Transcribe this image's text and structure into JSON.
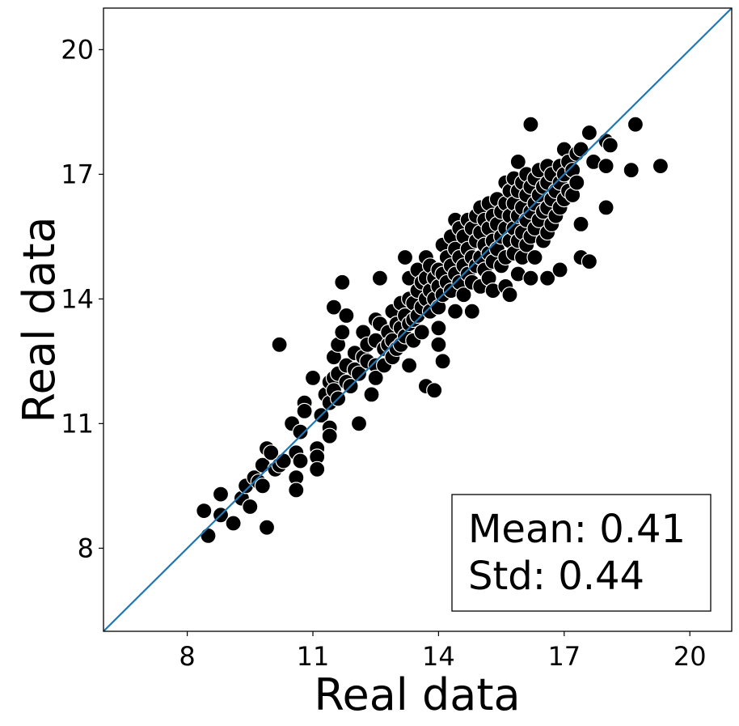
{
  "chart_data": {
    "type": "scatter",
    "title": "",
    "xlabel": "Real data",
    "ylabel": "Real data",
    "xlim": [
      6,
      21
    ],
    "ylim": [
      6,
      21
    ],
    "xticks": [
      8,
      11,
      14,
      17,
      20
    ],
    "yticks": [
      8,
      11,
      14,
      17,
      20
    ],
    "tick_labels": [
      "8",
      "11",
      "14",
      "17",
      "20"
    ],
    "grid": false,
    "marker_color": "#000000",
    "marker_edge_color": "#ffffff",
    "reference_line": {
      "name": "identity y=x",
      "color": "#1f77b4",
      "from": [
        6,
        6
      ],
      "to": [
        21,
        21
      ]
    },
    "annotation": {
      "mean_label": "Mean: 0.41",
      "std_label": "Std: 0.44",
      "position": "bottom-right"
    },
    "points": [
      [
        8.4,
        8.9
      ],
      [
        8.5,
        8.3
      ],
      [
        8.8,
        9.3
      ],
      [
        8.8,
        8.8
      ],
      [
        9.1,
        8.6
      ],
      [
        9.3,
        9.2
      ],
      [
        9.4,
        9.5
      ],
      [
        9.5,
        9.0
      ],
      [
        9.6,
        9.7
      ],
      [
        9.7,
        9.6
      ],
      [
        9.8,
        10.0
      ],
      [
        9.8,
        9.5
      ],
      [
        9.9,
        10.4
      ],
      [
        9.9,
        8.5
      ],
      [
        10.0,
        10.3
      ],
      [
        10.1,
        9.9
      ],
      [
        10.2,
        10.0
      ],
      [
        10.2,
        12.9
      ],
      [
        10.3,
        10.1
      ],
      [
        10.5,
        11.0
      ],
      [
        10.6,
        10.3
      ],
      [
        10.6,
        9.7
      ],
      [
        10.6,
        9.4
      ],
      [
        10.7,
        10.8
      ],
      [
        10.7,
        10.1
      ],
      [
        10.8,
        11.5
      ],
      [
        10.8,
        11.3
      ],
      [
        11.0,
        12.1
      ],
      [
        11.1,
        10.4
      ],
      [
        11.1,
        10.2
      ],
      [
        11.1,
        9.9
      ],
      [
        11.2,
        11.2
      ],
      [
        11.3,
        11.7
      ],
      [
        11.4,
        12.0
      ],
      [
        11.4,
        11.5
      ],
      [
        11.4,
        10.9
      ],
      [
        11.4,
        10.7
      ],
      [
        11.5,
        13.8
      ],
      [
        11.5,
        12.6
      ],
      [
        11.5,
        12.1
      ],
      [
        11.5,
        11.8
      ],
      [
        11.6,
        12.9
      ],
      [
        11.6,
        12.2
      ],
      [
        11.6,
        11.6
      ],
      [
        11.7,
        14.4
      ],
      [
        11.7,
        13.2
      ],
      [
        11.8,
        13.6
      ],
      [
        11.8,
        12.4
      ],
      [
        11.8,
        12.0
      ],
      [
        11.9,
        11.9
      ],
      [
        12.0,
        12.7
      ],
      [
        12.0,
        12.3
      ],
      [
        12.1,
        12.2
      ],
      [
        12.1,
        11.0
      ],
      [
        12.2,
        13.2
      ],
      [
        12.2,
        12.6
      ],
      [
        12.3,
        12.9
      ],
      [
        12.3,
        12.5
      ],
      [
        12.4,
        11.7
      ],
      [
        12.5,
        13.5
      ],
      [
        12.5,
        13.0
      ],
      [
        12.5,
        12.4
      ],
      [
        12.5,
        12.1
      ],
      [
        12.6,
        14.5
      ],
      [
        12.6,
        13.4
      ],
      [
        12.7,
        12.8
      ],
      [
        12.7,
        12.4
      ],
      [
        12.8,
        13.2
      ],
      [
        12.8,
        12.9
      ],
      [
        12.9,
        13.7
      ],
      [
        12.9,
        13.0
      ],
      [
        12.9,
        12.6
      ],
      [
        13.0,
        13.4
      ],
      [
        13.0,
        12.8
      ],
      [
        13.1,
        13.9
      ],
      [
        13.1,
        13.3
      ],
      [
        13.1,
        12.9
      ],
      [
        13.2,
        15.0
      ],
      [
        13.2,
        13.6
      ],
      [
        13.2,
        13.1
      ],
      [
        13.3,
        14.5
      ],
      [
        13.3,
        14.0
      ],
      [
        13.3,
        13.4
      ],
      [
        13.3,
        12.4
      ],
      [
        13.4,
        13.9
      ],
      [
        13.4,
        13.5
      ],
      [
        13.4,
        13.0
      ],
      [
        13.5,
        14.7
      ],
      [
        13.5,
        14.2
      ],
      [
        13.5,
        13.6
      ],
      [
        13.6,
        14.4
      ],
      [
        13.6,
        13.8
      ],
      [
        13.6,
        13.2
      ],
      [
        13.7,
        15.0
      ],
      [
        13.7,
        14.5
      ],
      [
        13.7,
        14.0
      ],
      [
        13.7,
        11.9
      ],
      [
        13.8,
        14.8
      ],
      [
        13.8,
        14.2
      ],
      [
        13.8,
        13.7
      ],
      [
        13.9,
        14.5
      ],
      [
        13.9,
        14.0
      ],
      [
        13.9,
        11.8
      ],
      [
        14.0,
        14.7
      ],
      [
        14.0,
        14.3
      ],
      [
        14.0,
        13.8
      ],
      [
        14.0,
        13.3
      ],
      [
        14.0,
        12.9
      ],
      [
        14.1,
        15.3
      ],
      [
        14.1,
        14.6
      ],
      [
        14.1,
        14.1
      ],
      [
        14.1,
        12.5
      ],
      [
        14.2,
        15.0
      ],
      [
        14.2,
        14.4
      ],
      [
        14.3,
        15.5
      ],
      [
        14.3,
        14.8
      ],
      [
        14.3,
        14.2
      ],
      [
        14.4,
        15.9
      ],
      [
        14.4,
        15.2
      ],
      [
        14.4,
        14.6
      ],
      [
        14.4,
        13.7
      ],
      [
        14.5,
        15.7
      ],
      [
        14.5,
        15.0
      ],
      [
        14.5,
        14.4
      ],
      [
        14.6,
        15.5
      ],
      [
        14.6,
        14.8
      ],
      [
        14.6,
        14.1
      ],
      [
        14.7,
        15.9
      ],
      [
        14.7,
        15.2
      ],
      [
        14.7,
        14.6
      ],
      [
        14.8,
        15.7
      ],
      [
        14.8,
        15.0
      ],
      [
        14.8,
        14.4
      ],
      [
        14.8,
        13.7
      ],
      [
        14.9,
        16.0
      ],
      [
        14.9,
        15.4
      ],
      [
        14.9,
        14.8
      ],
      [
        15.0,
        16.2
      ],
      [
        15.0,
        15.6
      ],
      [
        15.0,
        15.0
      ],
      [
        15.0,
        14.3
      ],
      [
        15.1,
        15.9
      ],
      [
        15.1,
        15.3
      ],
      [
        15.1,
        14.7
      ],
      [
        15.2,
        16.3
      ],
      [
        15.2,
        15.7
      ],
      [
        15.2,
        15.1
      ],
      [
        15.2,
        14.5
      ],
      [
        15.3,
        16.0
      ],
      [
        15.3,
        15.4
      ],
      [
        15.3,
        14.9
      ],
      [
        15.3,
        14.2
      ],
      [
        15.4,
        16.4
      ],
      [
        15.4,
        15.8
      ],
      [
        15.4,
        15.2
      ],
      [
        15.5,
        16.1
      ],
      [
        15.5,
        15.5
      ],
      [
        15.5,
        14.8
      ],
      [
        15.6,
        16.8
      ],
      [
        15.6,
        16.3
      ],
      [
        15.6,
        15.7
      ],
      [
        15.6,
        15.0
      ],
      [
        15.6,
        14.3
      ],
      [
        15.7,
        16.6
      ],
      [
        15.7,
        16.0
      ],
      [
        15.7,
        15.4
      ],
      [
        15.7,
        14.1
      ],
      [
        15.8,
        16.9
      ],
      [
        15.8,
        16.3
      ],
      [
        15.8,
        15.7
      ],
      [
        15.8,
        15.1
      ],
      [
        15.9,
        17.3
      ],
      [
        15.9,
        16.6
      ],
      [
        15.9,
        16.0
      ],
      [
        15.9,
        15.4
      ],
      [
        15.9,
        14.6
      ],
      [
        16.0,
        16.8
      ],
      [
        16.0,
        16.2
      ],
      [
        16.0,
        15.6
      ],
      [
        16.0,
        15.0
      ],
      [
        16.1,
        17.0
      ],
      [
        16.1,
        16.5
      ],
      [
        16.1,
        15.9
      ],
      [
        16.1,
        15.3
      ],
      [
        16.2,
        18.2
      ],
      [
        16.2,
        16.7
      ],
      [
        16.2,
        16.1
      ],
      [
        16.2,
        15.5
      ],
      [
        16.2,
        14.5
      ],
      [
        16.3,
        16.9
      ],
      [
        16.3,
        16.3
      ],
      [
        16.3,
        15.7
      ],
      [
        16.3,
        15.0
      ],
      [
        16.4,
        17.1
      ],
      [
        16.4,
        16.5
      ],
      [
        16.4,
        15.9
      ],
      [
        16.5,
        16.7
      ],
      [
        16.5,
        16.1
      ],
      [
        16.5,
        15.4
      ],
      [
        16.6,
        17.2
      ],
      [
        16.6,
        16.8
      ],
      [
        16.6,
        16.2
      ],
      [
        16.6,
        15.6
      ],
      [
        16.6,
        14.5
      ],
      [
        16.7,
        17.0
      ],
      [
        16.7,
        16.4
      ],
      [
        16.7,
        15.8
      ],
      [
        16.8,
        16.6
      ],
      [
        16.8,
        16.0
      ],
      [
        16.9,
        17.2
      ],
      [
        16.9,
        16.8
      ],
      [
        16.9,
        16.2
      ],
      [
        16.9,
        14.7
      ],
      [
        17.0,
        17.6
      ],
      [
        17.0,
        17.0
      ],
      [
        17.0,
        16.4
      ],
      [
        17.1,
        17.3
      ],
      [
        17.1,
        16.6
      ],
      [
        17.2,
        17.1
      ],
      [
        17.2,
        16.5
      ],
      [
        17.3,
        17.5
      ],
      [
        17.3,
        16.8
      ],
      [
        17.4,
        17.6
      ],
      [
        17.4,
        15.8
      ],
      [
        17.4,
        15.0
      ],
      [
        17.6,
        18.0
      ],
      [
        17.6,
        14.9
      ],
      [
        17.7,
        17.3
      ],
      [
        18.0,
        17.8
      ],
      [
        18.0,
        17.2
      ],
      [
        18.0,
        16.2
      ],
      [
        18.1,
        17.7
      ],
      [
        18.6,
        17.1
      ],
      [
        18.7,
        18.2
      ],
      [
        19.3,
        17.2
      ]
    ]
  }
}
